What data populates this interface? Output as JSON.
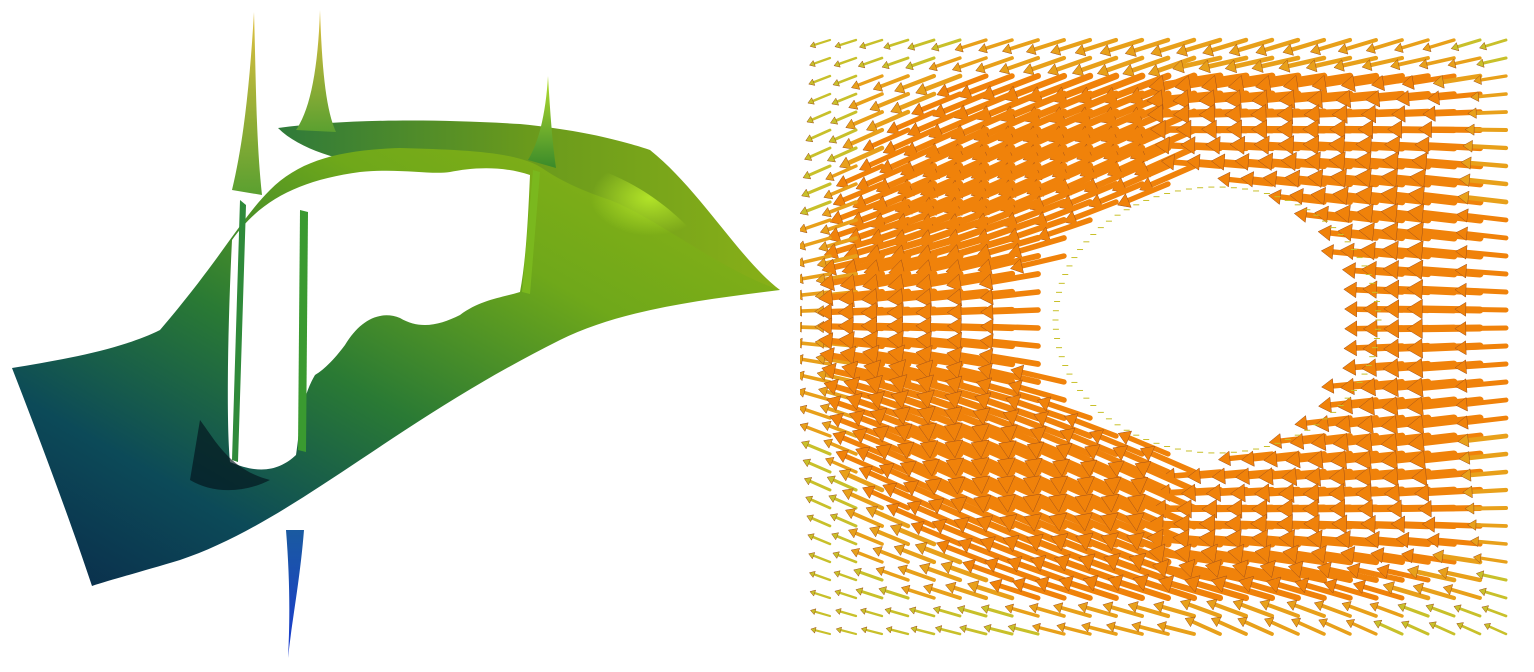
{
  "panels": [
    {
      "id": "surface",
      "subject": "3d-surface-plot",
      "colormap": [
        "#0a2a4a",
        "#0b4a5a",
        "#1f7a4a",
        "#3f8f1f",
        "#7fb01a",
        "#b5d430",
        "#d8d040",
        "#1a3aa0"
      ]
    },
    {
      "id": "vectors",
      "subject": "vector-field-glyphs",
      "colors": {
        "strong": "#f0820a",
        "medium": "#e8a01a",
        "weak": "#c8c02a",
        "edge": "#a0501a"
      }
    }
  ]
}
